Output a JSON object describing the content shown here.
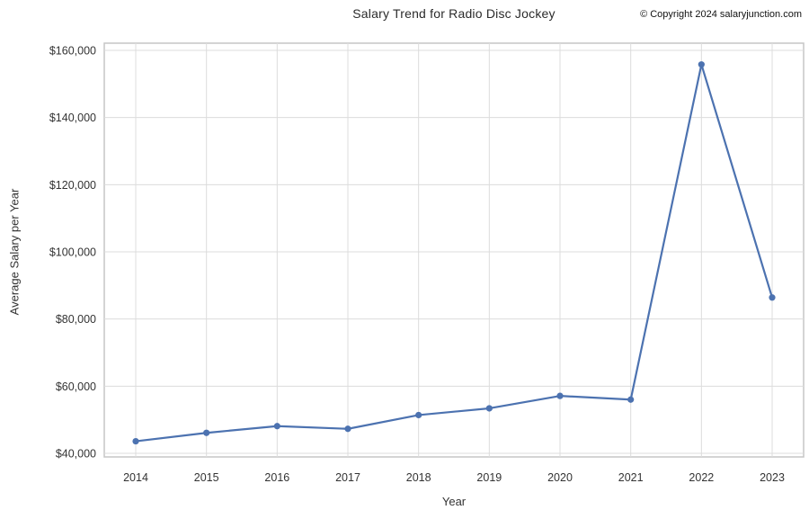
{
  "header": {
    "copyright": "© Copyright 2024 salaryjunction.com"
  },
  "chart_data": {
    "type": "line",
    "title": "Salary Trend for Radio Disc Jockey",
    "xlabel": "Year",
    "ylabel": "Average Salary per Year",
    "categories": [
      "2014",
      "2015",
      "2016",
      "2017",
      "2018",
      "2019",
      "2020",
      "2021",
      "2022",
      "2023"
    ],
    "series": [
      {
        "name": "Average Salary per Year",
        "values": [
          43600,
          46100,
          48100,
          47300,
          51400,
          53400,
          57100,
          56000,
          155800,
          86400
        ]
      }
    ],
    "ylim": [
      40000,
      160000
    ],
    "yticks": [
      40000,
      60000,
      80000,
      100000,
      120000,
      140000,
      160000
    ],
    "ytick_labels": [
      "$40,000",
      "$60,000",
      "$80,000",
      "$100,000",
      "$120,000",
      "$140,000",
      "$160,000"
    ],
    "grid": true,
    "legend": "none",
    "colors": {
      "line": "#4c72b0",
      "marker": "#4c72b0",
      "grid": "#dcdcdc",
      "spine": "#c6c6c6",
      "text": "#333333"
    }
  }
}
